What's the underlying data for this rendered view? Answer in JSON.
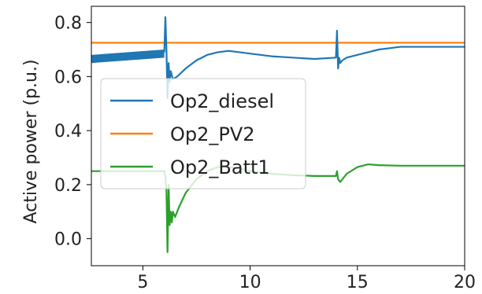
{
  "chart_data": {
    "type": "line",
    "title": "",
    "xlabel": "",
    "ylabel": "Active power (p.u.)",
    "xlim": [
      2.6,
      20
    ],
    "ylim": [
      -0.1,
      0.86
    ],
    "xticks": [
      5,
      10,
      15,
      20
    ],
    "xtick_labels": [
      "5",
      "10",
      "15",
      "20"
    ],
    "yticks": [
      0.0,
      0.2,
      0.4,
      0.6,
      0.8
    ],
    "ytick_labels": [
      "0.0",
      "0.2",
      "0.4",
      "0.6",
      "0.8"
    ],
    "grid": false,
    "legend_position": "center-left",
    "series": [
      {
        "name": "Op2_diesel",
        "color": "#1f77b4",
        "band": {
          "x_start": 2.6,
          "x_end": 6.0,
          "upper": [
            0.68,
            0.7
          ],
          "lower": [
            0.65,
            0.67
          ]
        },
        "x": [
          6.0,
          6.05,
          6.1,
          6.15,
          6.2,
          6.25,
          6.3,
          6.4,
          6.6,
          7.0,
          7.5,
          8.0,
          8.5,
          9.0,
          9.5,
          10.0,
          11.0,
          12.0,
          13.0,
          14.0,
          14.05,
          14.1,
          14.15,
          14.2,
          14.3,
          14.5,
          15.0,
          15.5,
          16.0,
          16.5,
          17.0,
          18.0,
          19.0,
          20.0
        ],
        "y": [
          0.69,
          0.82,
          0.7,
          0.52,
          0.65,
          0.58,
          0.62,
          0.59,
          0.6,
          0.63,
          0.66,
          0.68,
          0.69,
          0.695,
          0.69,
          0.685,
          0.675,
          0.67,
          0.665,
          0.67,
          0.77,
          0.63,
          0.67,
          0.65,
          0.66,
          0.67,
          0.68,
          0.69,
          0.7,
          0.705,
          0.71,
          0.71,
          0.71,
          0.71
        ]
      },
      {
        "name": "Op2_PV2",
        "color": "#ff7f0e",
        "x": [
          2.6,
          20.0
        ],
        "y": [
          0.725,
          0.725
        ]
      },
      {
        "name": "Op2_Batt1",
        "color": "#2ca02c",
        "x": [
          2.6,
          6.0,
          6.05,
          6.1,
          6.15,
          6.2,
          6.25,
          6.3,
          6.35,
          6.4,
          6.5,
          6.7,
          7.0,
          7.5,
          8.0,
          8.5,
          9.0,
          9.5,
          10.0,
          11.0,
          12.0,
          13.0,
          14.0,
          14.05,
          14.1,
          14.2,
          14.3,
          14.5,
          15.0,
          15.5,
          16.0,
          17.0,
          18.0,
          19.0,
          20.0
        ],
        "y": [
          0.25,
          0.25,
          0.23,
          0.18,
          -0.05,
          0.2,
          0.05,
          0.1,
          0.06,
          0.1,
          0.08,
          0.12,
          0.17,
          0.22,
          0.25,
          0.265,
          0.265,
          0.26,
          0.25,
          0.24,
          0.235,
          0.232,
          0.232,
          0.25,
          0.22,
          0.21,
          0.22,
          0.24,
          0.265,
          0.275,
          0.272,
          0.27,
          0.27,
          0.27,
          0.27
        ]
      }
    ]
  }
}
